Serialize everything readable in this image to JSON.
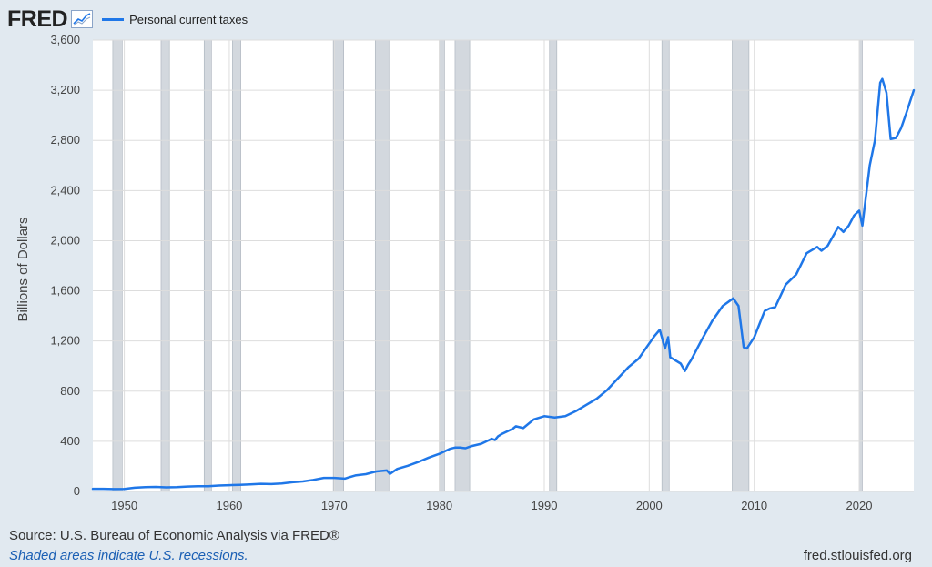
{
  "header": {
    "logo_text": "FRED",
    "logo_icon": "line-chart-icon",
    "legend_label": "Personal current taxes"
  },
  "footer": {
    "source": "Source: U.S. Bureau of Economic Analysis via FRED®",
    "note": "Shaded areas indicate U.S. recessions.",
    "url": "fred.stlouisfed.org"
  },
  "colors": {
    "background": "#e1e9f0",
    "plot_background": "#ffffff",
    "line": "#1f77e8",
    "recession": "#d3d8de",
    "grid": "#dddddd"
  },
  "chart_data": {
    "type": "line",
    "title": "",
    "xlabel": "",
    "ylabel": "Billions of Dollars",
    "xlim": [
      1947,
      2025.2
    ],
    "ylim": [
      0,
      3600
    ],
    "x_ticks": [
      1950,
      1960,
      1970,
      1980,
      1990,
      2000,
      2010,
      2020
    ],
    "y_ticks": [
      0,
      400,
      800,
      1200,
      1600,
      2000,
      2400,
      2800,
      3200,
      3600
    ],
    "y_tick_labels": [
      "0",
      "400",
      "800",
      "1,200",
      "1,600",
      "2,000",
      "2,400",
      "2,800",
      "3,200",
      "3,600"
    ],
    "legend": "top-left",
    "recessions": [
      [
        1948.9,
        1949.8
      ],
      [
        1953.5,
        1954.3
      ],
      [
        1957.6,
        1958.3
      ],
      [
        1960.3,
        1961.1
      ],
      [
        1969.9,
        1970.9
      ],
      [
        1973.9,
        1975.2
      ],
      [
        1980.0,
        1980.5
      ],
      [
        1981.5,
        1982.9
      ],
      [
        1990.5,
        1991.2
      ],
      [
        2001.2,
        2001.9
      ],
      [
        2007.9,
        2009.5
      ],
      [
        2020.0,
        2020.3
      ]
    ],
    "series": [
      {
        "name": "Personal current taxes",
        "x": [
          1947,
          1948,
          1949,
          1950,
          1951,
          1952,
          1953,
          1954,
          1955,
          1956,
          1957,
          1958,
          1959,
          1960,
          1961,
          1962,
          1963,
          1964,
          1965,
          1966,
          1967,
          1968,
          1969,
          1970,
          1971,
          1972,
          1973,
          1974,
          1975,
          1975.3,
          1976,
          1977,
          1978,
          1979,
          1980,
          1981,
          1981.5,
          1982,
          1982.5,
          1983,
          1984,
          1985,
          1985.3,
          1985.6,
          1986,
          1987,
          1987.3,
          1988,
          1989,
          1990,
          1991,
          1992,
          1993,
          1994,
          1995,
          1996,
          1997,
          1998,
          1999,
          2000,
          2000.5,
          2001,
          2001.5,
          2001.8,
          2002,
          2003,
          2003.4,
          2003.7,
          2004,
          2005,
          2006,
          2007,
          2008,
          2008.5,
          2009,
          2009.3,
          2010,
          2011,
          2011.5,
          2012,
          2013,
          2014,
          2015,
          2016,
          2016.4,
          2017,
          2018,
          2018.5,
          2019,
          2019.5,
          2020,
          2020.3,
          2021,
          2021.5,
          2022,
          2022.2,
          2022.6,
          2023,
          2023.5,
          2024,
          2024.5,
          2025.2
        ],
        "values": [
          21,
          21,
          19,
          20,
          30,
          35,
          36,
          33,
          35,
          39,
          42,
          42,
          47,
          50,
          52,
          56,
          61,
          59,
          64,
          73,
          80,
          92,
          108,
          108,
          102,
          128,
          138,
          160,
          168,
          140,
          180,
          205,
          235,
          270,
          300,
          340,
          350,
          350,
          345,
          360,
          380,
          420,
          410,
          440,
          460,
          500,
          520,
          505,
          575,
          600,
          590,
          600,
          640,
          690,
          740,
          810,
          900,
          990,
          1060,
          1180,
          1240,
          1290,
          1140,
          1230,
          1070,
          1020,
          960,
          1010,
          1050,
          1210,
          1360,
          1480,
          1540,
          1480,
          1150,
          1140,
          1230,
          1440,
          1460,
          1470,
          1650,
          1730,
          1900,
          1950,
          1920,
          1960,
          2110,
          2070,
          2120,
          2200,
          2240,
          2120,
          2600,
          2800,
          3260,
          3290,
          3180,
          2810,
          2820,
          2900,
          3020,
          3200
        ]
      }
    ]
  }
}
